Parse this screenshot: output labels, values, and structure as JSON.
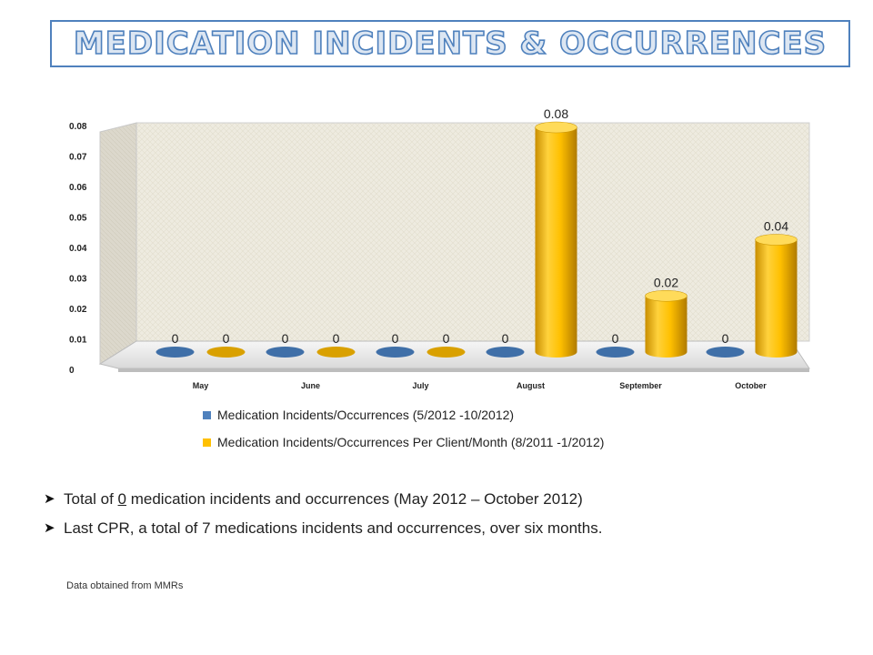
{
  "title": "MEDICATION INCIDENTS & OCCURRENCES",
  "chart_data": {
    "type": "bar",
    "categories": [
      "May",
      "June",
      "July",
      "August",
      "September",
      "October"
    ],
    "ylim": [
      0,
      0.08
    ],
    "yticks": [
      "0",
      "0.01",
      "0.02",
      "0.03",
      "0.04",
      "0.05",
      "0.06",
      "0.07",
      "0.08"
    ],
    "grid": false,
    "legend_position": "bottom",
    "series": [
      {
        "name": "Medication Incidents/Occurrences  (5/2012 -10/2012)",
        "color": "#4f81bd",
        "values": [
          0,
          0,
          0,
          0,
          0,
          0
        ],
        "labels": [
          "0",
          "0",
          "0",
          "0",
          "0",
          "0"
        ]
      },
      {
        "name": "Medication Incidents/Occurrences  Per Client/Month (8/2011 -1/2012)",
        "color": "#ffc000",
        "values": [
          0,
          0,
          0,
          0.08,
          0.02,
          0.04
        ],
        "labels": [
          "0",
          "0",
          "0",
          "0.08",
          "0.02",
          "0.04"
        ]
      }
    ]
  },
  "bullets": {
    "b1_pre": "Total of ",
    "b1_num": "0",
    "b1_post": " medication incidents and occurrences (May 2012 – October  2012)",
    "b2": "Last CPR, a total of 7 medications incidents and occurrences, over six months."
  },
  "source": "Data obtained from MMRs"
}
